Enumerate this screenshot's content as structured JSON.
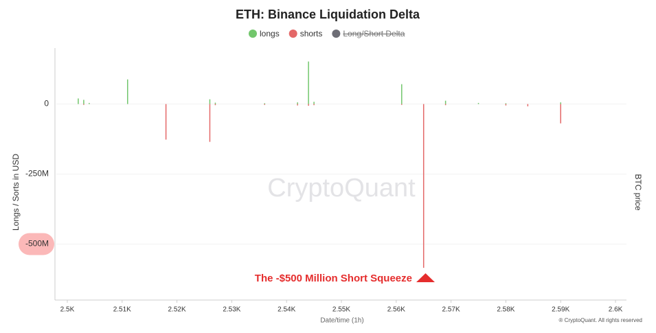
{
  "chart_data": {
    "type": "bar",
    "title": "ETH: Binance Liquidation Delta",
    "x_label": "Date/time (1h)",
    "y_label": "Longs / Sorts in USD",
    "y2_label": "BTC price",
    "watermark": "CryptoQuant",
    "credit": "® CryptoQuant. All rights reserved",
    "annotation": "The -$500 Million Short Squeeze",
    "highlight_tick": 2,
    "x": [
      2502,
      2503,
      2504,
      2511,
      2518,
      2526,
      2527,
      2536,
      2542,
      2544,
      2545,
      2561,
      2565,
      2569,
      2575,
      2580,
      2584,
      2590
    ],
    "series": [
      {
        "name": "longs",
        "color": "#72c66c",
        "values": [
          20000000,
          15000000,
          4000000,
          88000000,
          null,
          17000000,
          5000000,
          3000000,
          6000000,
          152000000,
          8000000,
          71000000,
          null,
          12000000,
          4000000,
          3000000,
          null,
          6000000
        ]
      },
      {
        "name": "shorts",
        "color": "#e46868",
        "values": [
          null,
          -3000000,
          null,
          null,
          -127000000,
          -135000000,
          -4000000,
          -3000000,
          -5000000,
          -6000000,
          -4000000,
          -3000000,
          -585000000,
          -4000000,
          null,
          -5000000,
          -8000000,
          -69000000
        ]
      },
      {
        "name": "Long/Short Delta",
        "color": "#6e6e76",
        "hidden": true
      }
    ],
    "xlim": [
      2498,
      2602
    ],
    "xticks": [
      {
        "value": 2500,
        "label": "2.5K"
      },
      {
        "value": 2510,
        "label": "2.51K"
      },
      {
        "value": 2520,
        "label": "2.52K"
      },
      {
        "value": 2530,
        "label": "2.53K"
      },
      {
        "value": 2540,
        "label": "2.54K"
      },
      {
        "value": 2550,
        "label": "2.55K"
      },
      {
        "value": 2560,
        "label": "2.56K"
      },
      {
        "value": 2570,
        "label": "2.57K"
      },
      {
        "value": 2580,
        "label": "2.58K"
      },
      {
        "value": 2590,
        "label": "2.59K"
      },
      {
        "value": 2600,
        "label": "2.6K"
      }
    ],
    "ylim": [
      -700000000,
      200000000
    ],
    "yticks": [
      0,
      {
        "value": -250000000,
        "label": "-250M"
      },
      {
        "value": -500000000,
        "label": "-500M"
      }
    ],
    "grid": true
  }
}
